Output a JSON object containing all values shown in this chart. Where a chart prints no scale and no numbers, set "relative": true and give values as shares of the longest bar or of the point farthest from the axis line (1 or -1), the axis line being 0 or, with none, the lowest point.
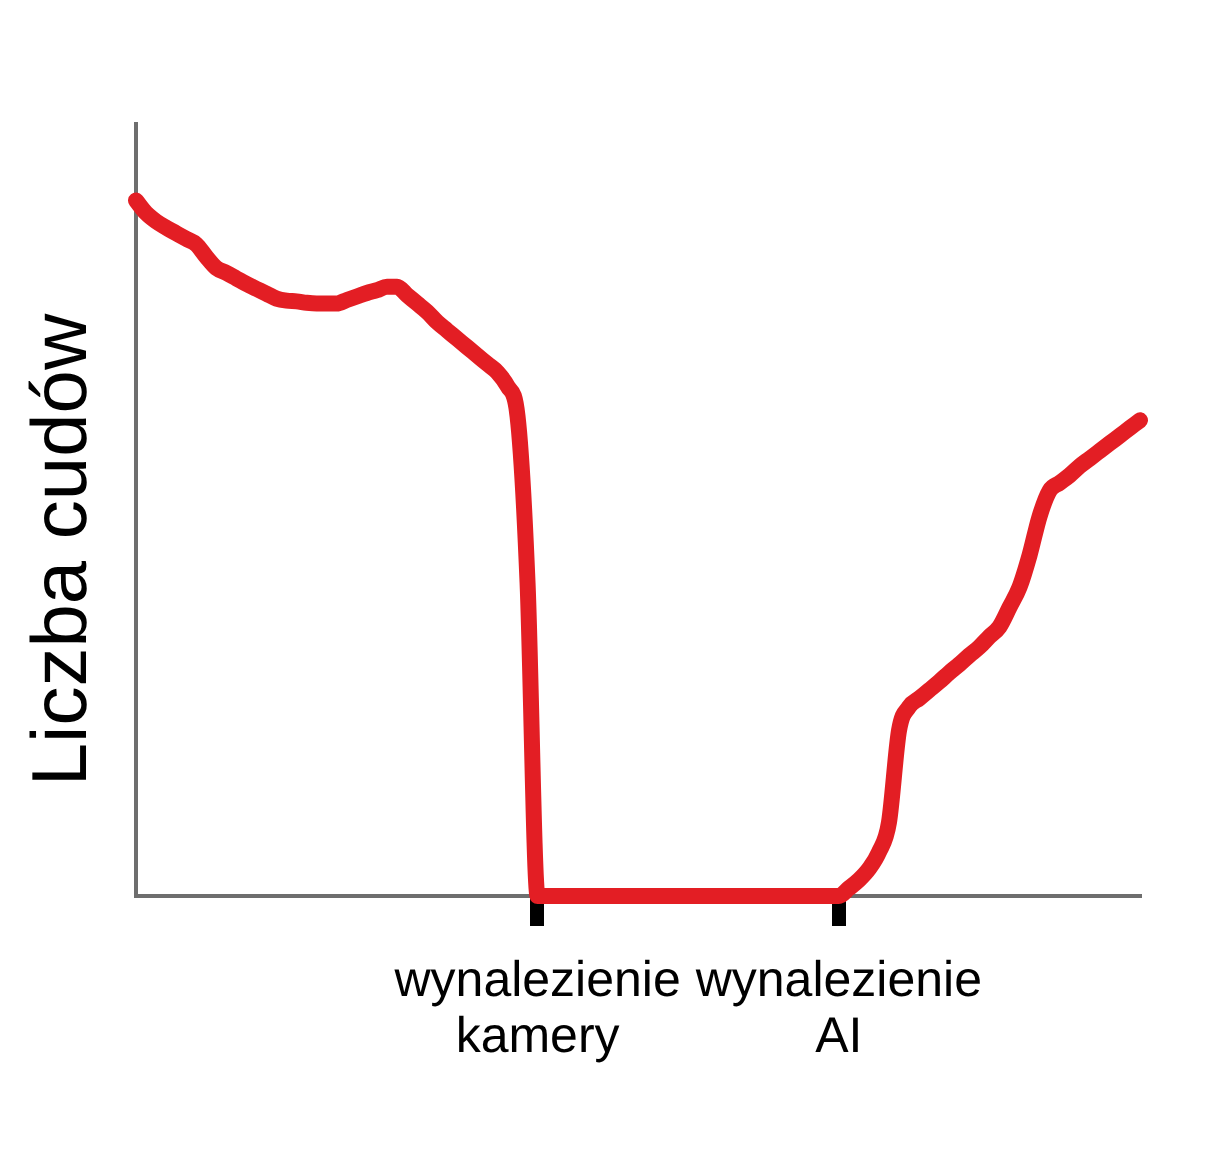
{
  "chart_data": {
    "type": "line",
    "ylabel": "Liczba cudów",
    "relative": true,
    "categories": [
      null,
      null,
      null,
      null,
      null,
      null,
      null,
      null,
      null,
      null,
      null,
      null,
      null,
      null,
      null,
      null,
      null,
      null,
      null,
      null,
      null,
      null,
      null,
      null,
      null,
      null,
      null,
      null,
      null,
      null,
      null,
      null,
      null,
      null,
      null,
      null,
      null,
      null,
      null,
      null,
      "wynalezienie kamery",
      null,
      null,
      null,
      null,
      null,
      null,
      null,
      null,
      null,
      null,
      null,
      null,
      null,
      null,
      null,
      null,
      null,
      null,
      null,
      null,
      null,
      null,
      null,
      null,
      null,
      null,
      null,
      null,
      null,
      "wynalezienie AI",
      null,
      null,
      null,
      null,
      null,
      null,
      null,
      null,
      null,
      null,
      null,
      null,
      null,
      null,
      null,
      null,
      null,
      null,
      null,
      null,
      null,
      null,
      null,
      null,
      null,
      null,
      null,
      null,
      null,
      null
    ],
    "series": [
      {
        "color": "#e31e24",
        "values": [
          1.0,
          0.982,
          0.97,
          0.961,
          0.953,
          0.945,
          0.937,
          0.919,
          0.903,
          0.896,
          0.888,
          0.88,
          0.873,
          0.866,
          0.859,
          0.856,
          0.855,
          0.853,
          0.852,
          0.852,
          0.852,
          0.857,
          0.862,
          0.867,
          0.871,
          0.876,
          0.876,
          0.864,
          0.852,
          0.84,
          0.825,
          0.813,
          0.801,
          0.789,
          0.777,
          0.765,
          0.753,
          0.733,
          0.69,
          0.45,
          0,
          0,
          0,
          0,
          0,
          0,
          0,
          0,
          0,
          0,
          0,
          0,
          0,
          0,
          0,
          0,
          0,
          0,
          0,
          0,
          0,
          0,
          0,
          0,
          0,
          0,
          0,
          0,
          0,
          0,
          0,
          0.011,
          0.023,
          0.039,
          0.063,
          0.106,
          0.238,
          0.272,
          0.284,
          0.296,
          0.308,
          0.321,
          0.333,
          0.346,
          0.358,
          0.373,
          0.387,
          0.415,
          0.444,
          0.49,
          0.546,
          0.583,
          0.594,
          0.605,
          0.618,
          0.629,
          0.64,
          0.651,
          0.662,
          0.673,
          0.684
        ]
      }
    ]
  }
}
